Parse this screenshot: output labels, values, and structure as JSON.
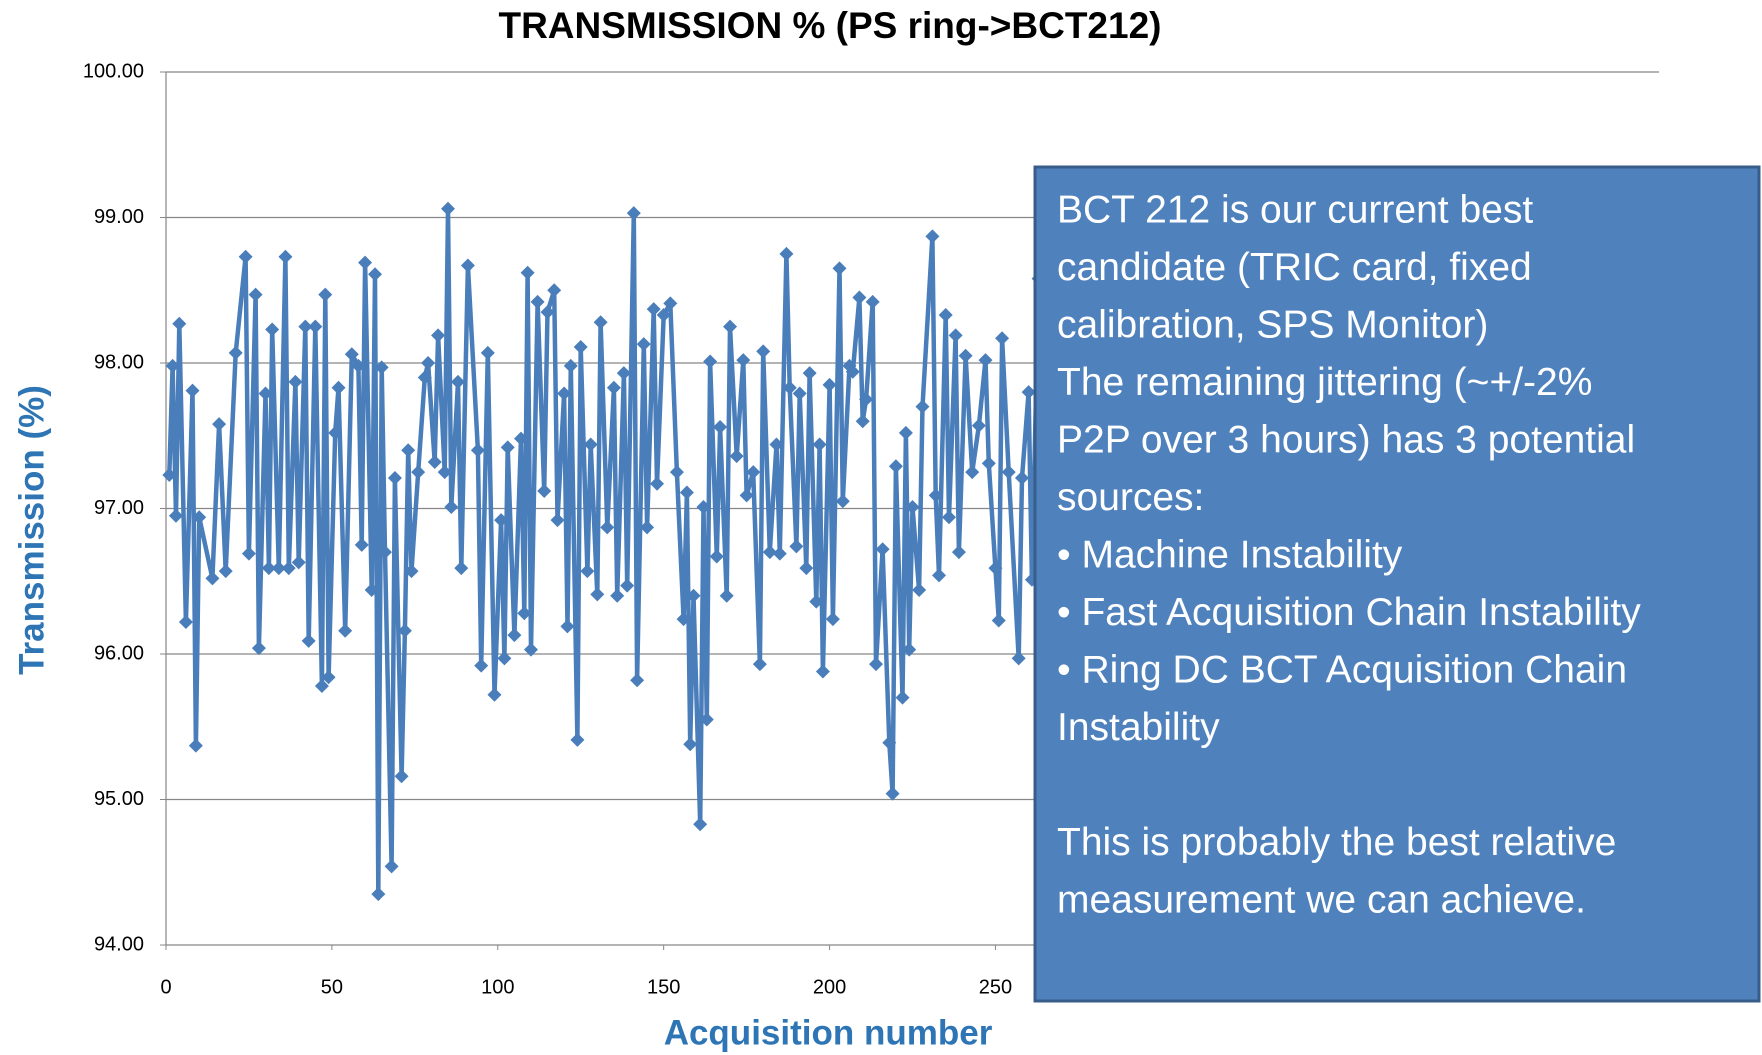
{
  "chart_data": {
    "type": "line",
    "title": "TRANSMISSION % (PS ring->BCT212)",
    "x_label": "Acquisition number",
    "y_label": "Transmission (%)",
    "xlim": [
      0,
      450
    ],
    "xticks": [
      0,
      50,
      100,
      150,
      200,
      250
    ],
    "ylim": [
      94,
      100
    ],
    "yticks": [
      {
        "value": 94,
        "label": "94.00"
      },
      {
        "value": 95,
        "label": "95.00"
      },
      {
        "value": 96,
        "label": "96.00"
      },
      {
        "value": 97,
        "label": "97.00"
      },
      {
        "value": 98,
        "label": "98.00"
      },
      {
        "value": 99,
        "label": "99.00"
      },
      {
        "value": 100,
        "label": "100.00"
      }
    ],
    "grid": true,
    "series": [
      {
        "color": "#4a7ebb",
        "x": [
          1,
          2,
          3,
          4,
          6,
          8,
          9,
          10,
          14,
          16,
          18,
          21,
          24,
          25,
          27,
          28,
          30,
          31,
          32,
          34,
          36,
          37,
          39,
          40,
          42,
          43,
          45,
          47,
          48,
          49,
          51,
          52,
          54,
          56,
          58,
          59,
          60,
          62,
          63,
          64,
          65,
          66,
          68,
          69,
          71,
          72,
          73,
          74,
          76,
          78,
          79,
          81,
          82,
          84,
          85,
          86,
          88,
          89,
          91,
          94,
          95,
          97,
          99,
          101,
          102,
          103,
          105,
          107,
          108,
          109,
          110,
          112,
          114,
          115,
          117,
          118,
          120,
          121,
          122,
          124,
          125,
          127,
          128,
          130,
          131,
          133,
          135,
          136,
          138,
          139,
          141,
          142,
          144,
          145,
          147,
          148,
          150,
          152,
          154,
          156,
          157,
          158,
          159,
          161,
          162,
          163,
          164,
          166,
          167,
          169,
          170,
          172,
          174,
          175,
          177,
          179,
          180,
          182,
          184,
          185,
          187,
          188,
          190,
          191,
          193,
          194,
          196,
          197,
          198,
          200,
          201,
          203,
          204,
          206,
          207,
          209,
          210,
          211,
          213,
          214,
          216,
          218,
          219,
          220,
          222,
          223,
          224,
          225,
          227,
          228,
          231,
          232,
          233,
          235,
          236,
          238,
          239,
          241,
          243,
          245,
          247,
          248,
          250,
          251,
          252,
          254,
          257,
          258,
          260,
          261,
          263
        ],
        "values": [
          97.23,
          97.98,
          96.95,
          98.27,
          96.22,
          97.81,
          95.37,
          96.94,
          96.52,
          97.58,
          96.57,
          98.07,
          98.73,
          96.69,
          98.47,
          96.04,
          97.79,
          96.59,
          98.23,
          96.59,
          98.73,
          96.59,
          97.87,
          96.63,
          98.25,
          96.09,
          98.25,
          95.78,
          98.47,
          95.84,
          97.52,
          97.83,
          96.16,
          98.06,
          97.98,
          96.75,
          98.69,
          96.44,
          98.61,
          94.35,
          97.97,
          96.7,
          94.54,
          97.21,
          95.16,
          96.16,
          97.4,
          96.57,
          97.25,
          97.9,
          98.0,
          97.32,
          98.19,
          97.25,
          99.06,
          97.01,
          97.87,
          96.59,
          98.67,
          97.4,
          95.92,
          98.07,
          95.72,
          96.92,
          95.97,
          97.42,
          96.13,
          97.48,
          96.28,
          98.62,
          96.03,
          98.42,
          97.12,
          98.35,
          98.5,
          96.92,
          97.79,
          96.19,
          97.98,
          95.41,
          98.11,
          96.57,
          97.44,
          96.41,
          98.28,
          96.87,
          97.83,
          96.4,
          97.93,
          96.47,
          99.03,
          95.82,
          98.13,
          96.87,
          98.37,
          97.17,
          98.33,
          98.41,
          97.25,
          96.24,
          97.11,
          95.38,
          96.4,
          94.83,
          97.01,
          95.55,
          98.01,
          96.67,
          97.56,
          96.4,
          98.25,
          97.36,
          98.02,
          97.09,
          97.25,
          95.93,
          98.08,
          96.7,
          97.44,
          96.69,
          98.75,
          97.83,
          96.74,
          97.79,
          96.59,
          97.93,
          96.36,
          97.44,
          95.88,
          97.85,
          96.24,
          98.65,
          97.05,
          97.98,
          97.94,
          98.45,
          97.6,
          97.75,
          98.42,
          95.93,
          96.72,
          95.39,
          95.04,
          97.29,
          95.7,
          97.52,
          96.03,
          97.01,
          96.44,
          97.7,
          98.87,
          97.09,
          96.54,
          98.33,
          96.94,
          98.19,
          96.7,
          98.05,
          97.25,
          97.57,
          98.02,
          97.31,
          96.59,
          96.23,
          98.17,
          97.25,
          95.97,
          97.21,
          97.8,
          96.51,
          98.58
        ]
      }
    ],
    "annotation_lines": [
      "BCT 212 is our current best",
      "candidate (TRIC card, fixed",
      "calibration, SPS Monitor)",
      "The remaining jittering (~+/-2%",
      "P2P over 3 hours) has 3 potential",
      "sources:",
      "• Machine Instability",
      "• Fast Acquisition Chain Instability",
      "• Ring DC BCT Acquisition Chain",
      "Instability"
    ],
    "annotation_lines_2": [
      "This is probably the best relative",
      "measurement we can achieve."
    ]
  }
}
